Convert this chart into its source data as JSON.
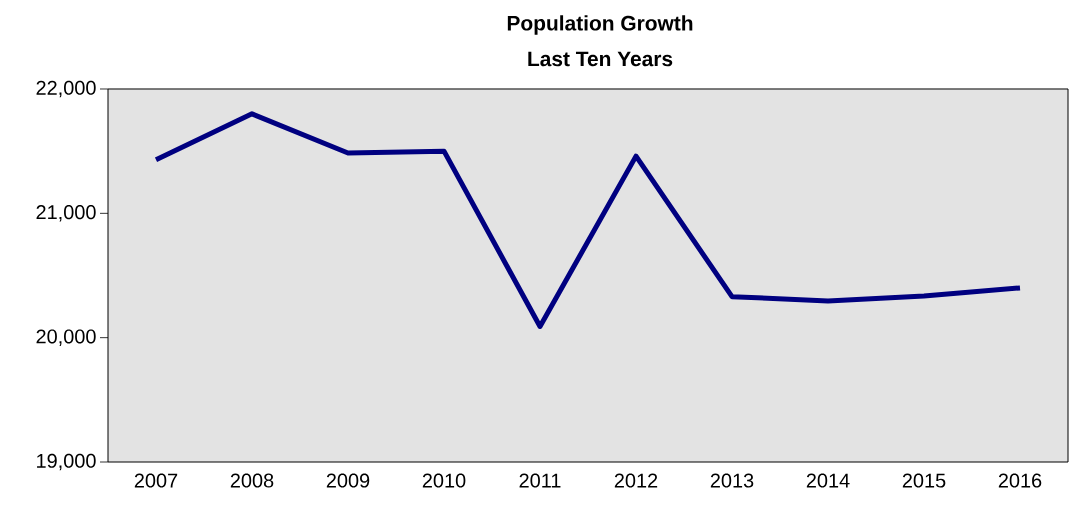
{
  "chart_data": {
    "type": "line",
    "title": "Population Growth",
    "subtitle": "Last Ten Years",
    "categories": [
      "2007",
      "2008",
      "2009",
      "2010",
      "2011",
      "2012",
      "2013",
      "2014",
      "2015",
      "2016"
    ],
    "series": [
      {
        "color": "#000080",
        "values": [
          21430,
          21800,
          21485,
          21500,
          20090,
          21460,
          20330,
          20295,
          20335,
          20400
        ]
      }
    ],
    "ylim": [
      19000,
      22000
    ],
    "yticks": [
      {
        "value": 19000,
        "label": "19,000"
      },
      {
        "value": 20000,
        "label": "20,000"
      },
      {
        "value": 21000,
        "label": "21,000"
      },
      {
        "value": 22000,
        "label": "22,000"
      }
    ],
    "marker": "none",
    "line_style": "solid"
  }
}
